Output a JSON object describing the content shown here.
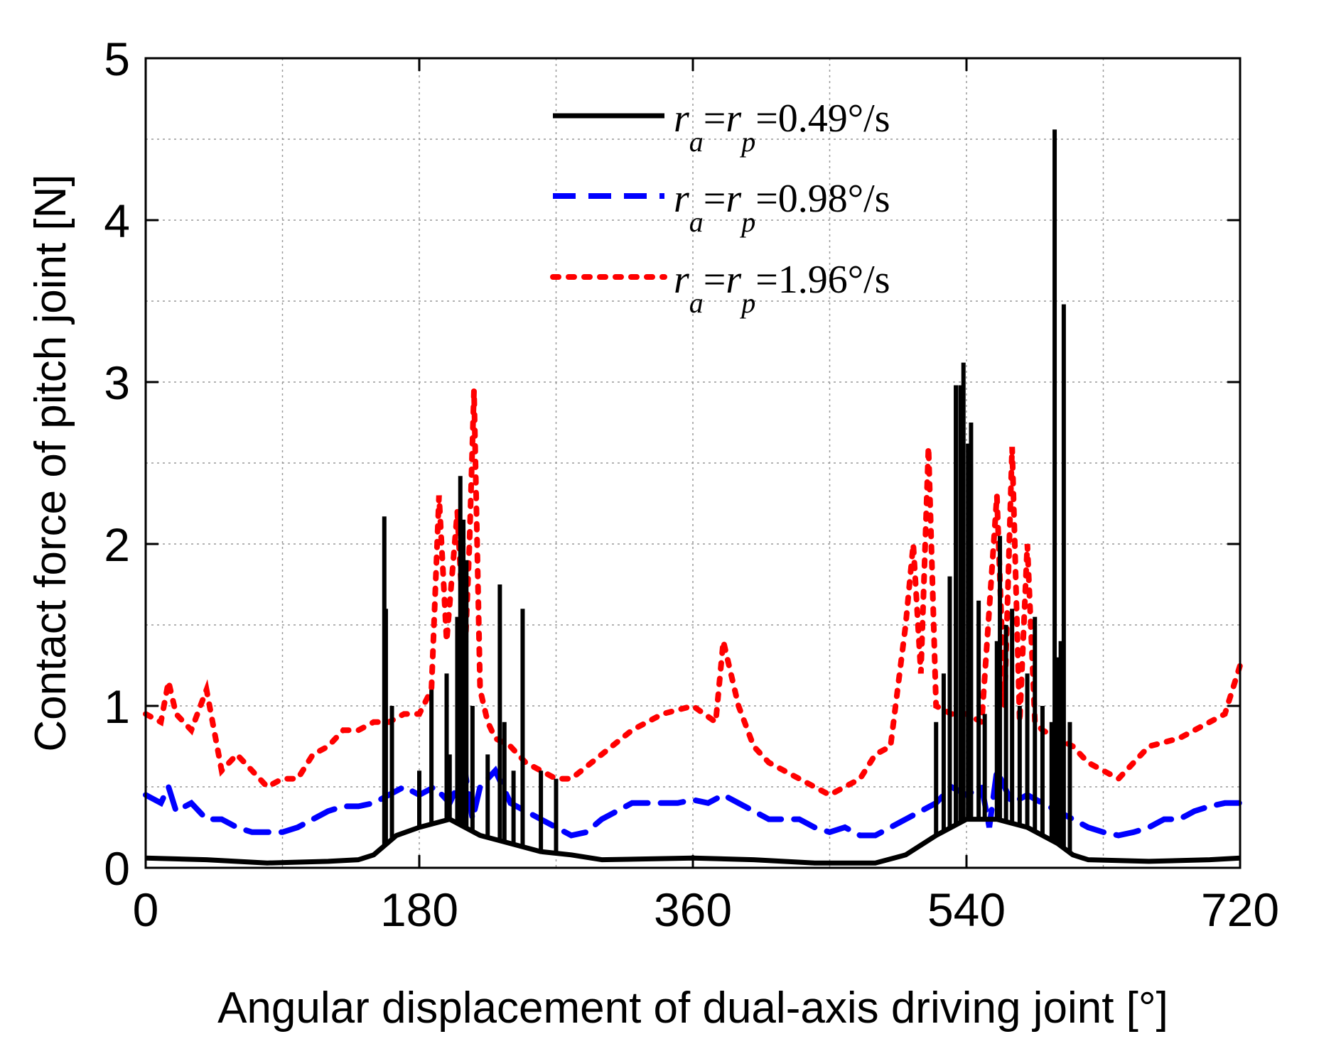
{
  "chart_data": {
    "type": "line",
    "title": "",
    "xlabel": "Angular displacement of dual-axis driving joint [°]",
    "ylabel": "Contact force of pitch joint [N]",
    "xlim": [
      0,
      720
    ],
    "ylim": [
      0,
      5
    ],
    "x_ticks": [
      0,
      180,
      360,
      540,
      720
    ],
    "x_tick_labels": [
      "0",
      "180",
      "360",
      "540",
      "720"
    ],
    "y_ticks": [
      0,
      1,
      2,
      3,
      4,
      5
    ],
    "y_tick_labels": [
      "0",
      "1",
      "2",
      "3",
      "4",
      "5"
    ],
    "grid": true,
    "legend_position": "top-center",
    "series": [
      {
        "name": "r_a=r_p=0.49°/s",
        "legend": {
          "a": "r",
          "a_sub": "a",
          "eq1": "=",
          "b": "r",
          "b_sub": "p",
          "value": "=0.49°/s"
        },
        "color": "#000000",
        "style": "solid",
        "baseline": [
          [
            0,
            0.06
          ],
          [
            40,
            0.05
          ],
          [
            80,
            0.03
          ],
          [
            120,
            0.04
          ],
          [
            140,
            0.05
          ],
          [
            150,
            0.08
          ],
          [
            165,
            0.2
          ],
          [
            180,
            0.25
          ],
          [
            200,
            0.3
          ],
          [
            220,
            0.2
          ],
          [
            240,
            0.15
          ],
          [
            260,
            0.1
          ],
          [
            280,
            0.08
          ],
          [
            300,
            0.05
          ],
          [
            360,
            0.06
          ],
          [
            400,
            0.05
          ],
          [
            440,
            0.03
          ],
          [
            480,
            0.03
          ],
          [
            500,
            0.08
          ],
          [
            520,
            0.2
          ],
          [
            540,
            0.3
          ],
          [
            560,
            0.3
          ],
          [
            580,
            0.25
          ],
          [
            600,
            0.15
          ],
          [
            610,
            0.08
          ],
          [
            620,
            0.05
          ],
          [
            660,
            0.04
          ],
          [
            700,
            0.05
          ],
          [
            720,
            0.06
          ]
        ],
        "spikes": [
          [
            157,
            2.17
          ],
          [
            158,
            1.6
          ],
          [
            162,
            1.0
          ],
          [
            180,
            0.6
          ],
          [
            188,
            1.1
          ],
          [
            198,
            1.2
          ],
          [
            200,
            0.7
          ],
          [
            205,
            1.55
          ],
          [
            207,
            2.42
          ],
          [
            209,
            2.15
          ],
          [
            211,
            1.9
          ],
          [
            215,
            1.0
          ],
          [
            225,
            0.7
          ],
          [
            233,
            1.75
          ],
          [
            236,
            0.9
          ],
          [
            242,
            0.6
          ],
          [
            248,
            1.6
          ],
          [
            260,
            0.6
          ],
          [
            270,
            0.55
          ],
          [
            520,
            0.9
          ],
          [
            525,
            1.2
          ],
          [
            529,
            1.8
          ],
          [
            533,
            2.98
          ],
          [
            536,
            2.98
          ],
          [
            538,
            3.12
          ],
          [
            541,
            2.62
          ],
          [
            543,
            2.75
          ],
          [
            548,
            1.65
          ],
          [
            552,
            0.95
          ],
          [
            560,
            1.4
          ],
          [
            562,
            2.05
          ],
          [
            566,
            1.5
          ],
          [
            570,
            1.6
          ],
          [
            575,
            1.0
          ],
          [
            580,
            1.2
          ],
          [
            585,
            1.55
          ],
          [
            590,
            1.0
          ],
          [
            596,
            0.9
          ],
          [
            598,
            4.56
          ],
          [
            600,
            1.3
          ],
          [
            602,
            1.4
          ],
          [
            604,
            3.48
          ],
          [
            608,
            0.9
          ]
        ]
      },
      {
        "name": "r_a=r_p=0.98°/s",
        "legend": {
          "a": "r",
          "a_sub": "a",
          "eq1": "=",
          "b": "r",
          "b_sub": "p",
          "value": "=0.98°/s"
        },
        "color": "#0000ff",
        "style": "dashed",
        "points": [
          [
            0,
            0.45
          ],
          [
            10,
            0.4
          ],
          [
            15,
            0.5
          ],
          [
            20,
            0.35
          ],
          [
            30,
            0.4
          ],
          [
            40,
            0.3
          ],
          [
            50,
            0.3
          ],
          [
            60,
            0.25
          ],
          [
            70,
            0.22
          ],
          [
            80,
            0.22
          ],
          [
            90,
            0.22
          ],
          [
            100,
            0.25
          ],
          [
            110,
            0.3
          ],
          [
            120,
            0.35
          ],
          [
            130,
            0.38
          ],
          [
            140,
            0.38
          ],
          [
            150,
            0.4
          ],
          [
            160,
            0.45
          ],
          [
            170,
            0.5
          ],
          [
            180,
            0.45
          ],
          [
            190,
            0.5
          ],
          [
            200,
            0.4
          ],
          [
            210,
            0.6
          ],
          [
            215,
            0.3
          ],
          [
            220,
            0.5
          ],
          [
            230,
            0.6
          ],
          [
            240,
            0.4
          ],
          [
            250,
            0.35
          ],
          [
            260,
            0.3
          ],
          [
            270,
            0.25
          ],
          [
            280,
            0.2
          ],
          [
            290,
            0.22
          ],
          [
            300,
            0.3
          ],
          [
            310,
            0.35
          ],
          [
            320,
            0.4
          ],
          [
            330,
            0.4
          ],
          [
            340,
            0.4
          ],
          [
            350,
            0.4
          ],
          [
            360,
            0.42
          ],
          [
            370,
            0.4
          ],
          [
            380,
            0.45
          ],
          [
            390,
            0.4
          ],
          [
            400,
            0.35
          ],
          [
            410,
            0.3
          ],
          [
            420,
            0.3
          ],
          [
            430,
            0.3
          ],
          [
            440,
            0.25
          ],
          [
            450,
            0.22
          ],
          [
            460,
            0.25
          ],
          [
            470,
            0.2
          ],
          [
            480,
            0.2
          ],
          [
            490,
            0.25
          ],
          [
            500,
            0.3
          ],
          [
            510,
            0.35
          ],
          [
            520,
            0.4
          ],
          [
            530,
            0.5
          ],
          [
            540,
            0.45
          ],
          [
            550,
            0.5
          ],
          [
            555,
            0.25
          ],
          [
            560,
            0.6
          ],
          [
            570,
            0.4
          ],
          [
            580,
            0.45
          ],
          [
            590,
            0.4
          ],
          [
            600,
            0.35
          ],
          [
            610,
            0.3
          ],
          [
            620,
            0.25
          ],
          [
            630,
            0.22
          ],
          [
            640,
            0.2
          ],
          [
            650,
            0.22
          ],
          [
            660,
            0.25
          ],
          [
            670,
            0.3
          ],
          [
            680,
            0.3
          ],
          [
            690,
            0.35
          ],
          [
            700,
            0.38
          ],
          [
            710,
            0.4
          ],
          [
            720,
            0.4
          ]
        ]
      },
      {
        "name": "r_a=r_p=1.96°/s",
        "legend": {
          "a": "r",
          "a_sub": "a",
          "eq1": "=",
          "b": "r",
          "b_sub": "p",
          "value": "=1.96°/s"
        },
        "color": "#ff0000",
        "style": "dotted",
        "points": [
          [
            0,
            0.95
          ],
          [
            10,
            0.9
          ],
          [
            15,
            1.15
          ],
          [
            20,
            0.95
          ],
          [
            30,
            0.85
          ],
          [
            40,
            1.1
          ],
          [
            50,
            0.6
          ],
          [
            60,
            0.7
          ],
          [
            70,
            0.6
          ],
          [
            80,
            0.5
          ],
          [
            90,
            0.55
          ],
          [
            100,
            0.55
          ],
          [
            110,
            0.7
          ],
          [
            120,
            0.75
          ],
          [
            130,
            0.85
          ],
          [
            140,
            0.85
          ],
          [
            150,
            0.9
          ],
          [
            160,
            0.9
          ],
          [
            170,
            0.95
          ],
          [
            180,
            0.95
          ],
          [
            188,
            1.1
          ],
          [
            193,
            2.3
          ],
          [
            198,
            1.4
          ],
          [
            205,
            2.2
          ],
          [
            210,
            1.3
          ],
          [
            213,
            2.0
          ],
          [
            216,
            2.95
          ],
          [
            220,
            1.1
          ],
          [
            225,
            0.9
          ],
          [
            230,
            0.8
          ],
          [
            240,
            0.75
          ],
          [
            250,
            0.65
          ],
          [
            260,
            0.6
          ],
          [
            270,
            0.55
          ],
          [
            280,
            0.55
          ],
          [
            300,
            0.7
          ],
          [
            320,
            0.85
          ],
          [
            340,
            0.95
          ],
          [
            360,
            1.0
          ],
          [
            375,
            0.9
          ],
          [
            380,
            1.4
          ],
          [
            390,
            1.0
          ],
          [
            400,
            0.75
          ],
          [
            410,
            0.65
          ],
          [
            420,
            0.6
          ],
          [
            430,
            0.55
          ],
          [
            440,
            0.5
          ],
          [
            450,
            0.45
          ],
          [
            460,
            0.5
          ],
          [
            470,
            0.55
          ],
          [
            480,
            0.7
          ],
          [
            490,
            0.75
          ],
          [
            500,
            1.5
          ],
          [
            505,
            2.0
          ],
          [
            510,
            1.2
          ],
          [
            515,
            2.6
          ],
          [
            520,
            1.0
          ],
          [
            530,
            0.95
          ],
          [
            540,
            0.95
          ],
          [
            550,
            0.9
          ],
          [
            560,
            2.3
          ],
          [
            565,
            1.0
          ],
          [
            570,
            2.6
          ],
          [
            575,
            0.9
          ],
          [
            580,
            2.0
          ],
          [
            585,
            0.9
          ],
          [
            590,
            0.85
          ],
          [
            600,
            0.8
          ],
          [
            610,
            0.75
          ],
          [
            620,
            0.65
          ],
          [
            630,
            0.6
          ],
          [
            640,
            0.55
          ],
          [
            650,
            0.65
          ],
          [
            660,
            0.75
          ],
          [
            680,
            0.8
          ],
          [
            700,
            0.9
          ],
          [
            710,
            0.95
          ],
          [
            720,
            1.25
          ]
        ]
      }
    ]
  }
}
